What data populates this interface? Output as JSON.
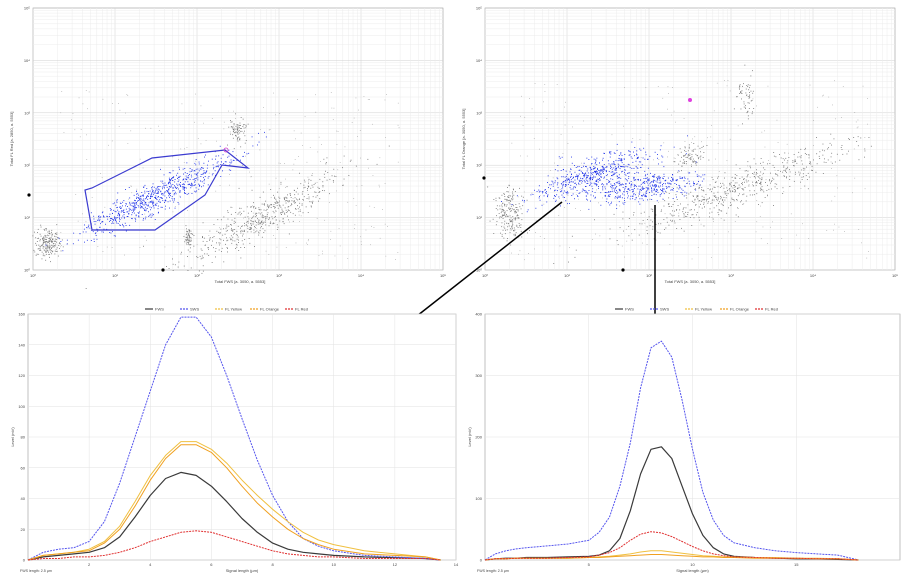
{
  "scatter_plots": [
    {
      "xlabel": "Total FWS [a. 3050, a. 5553]",
      "ylabel": "Total FL Red [a. 2850, a. 5553]",
      "x_tick_labels": [
        "10⁰",
        "10¹",
        "10²",
        "10³",
        "10⁴",
        "10⁵"
      ],
      "y_tick_labels": [
        "10⁰",
        "10¹",
        "10²",
        "10³",
        "10⁴",
        "10⁵"
      ]
    },
    {
      "xlabel": "Total FWS [a. 3050, a. 5553]",
      "ylabel": "Total FL Orange [a. 3050, a. 5553]",
      "x_tick_labels": [
        "10⁰",
        "10¹",
        "10²",
        "10³",
        "10⁴",
        "10⁵"
      ],
      "y_tick_labels": [
        "10⁰",
        "10¹",
        "10²",
        "10³",
        "10⁴",
        "10⁵"
      ]
    }
  ],
  "legend": [
    "FWS",
    "SWS",
    "FL Yellow",
    "FL Orange",
    "FL Red"
  ],
  "colors": {
    "FWS": "#3a3a3a",
    "SWS": "#5555ee",
    "FL Yellow": "#f0c040",
    "FL Orange": "#f0a020",
    "FL Red": "#e03030",
    "cloud": "#7a7a7a",
    "selected": "#1a2ee8",
    "gate": "#3b3bd0"
  },
  "chart_data": [
    {
      "type": "line",
      "xlabel": "Signal length (µm)",
      "ylabel": "Level (mV)",
      "footer": "FWS length: 2.5 µm",
      "xlim": [
        0,
        14
      ],
      "ylim": [
        0,
        160
      ],
      "x_ticks": [
        2,
        4,
        6,
        8,
        10,
        12,
        14
      ],
      "x_tick_labels": [
        "2",
        "4",
        "6",
        "8",
        "10",
        "12",
        "14"
      ],
      "y_ticks": [
        0,
        20,
        40,
        60,
        80,
        100,
        120,
        140,
        160
      ],
      "y_tick_labels": [
        "0",
        "20",
        "40",
        "60",
        "80",
        "100",
        "120",
        "140",
        "160"
      ],
      "x": [
        0,
        0.5,
        1,
        1.5,
        2,
        2.5,
        3,
        3.5,
        4,
        4.5,
        5,
        5.5,
        6,
        6.5,
        7,
        7.5,
        8,
        8.5,
        9,
        9.5,
        10,
        11,
        12,
        13,
        13.5
      ],
      "series": [
        {
          "name": "FWS",
          "values": [
            0,
            2,
            3,
            4,
            5,
            8,
            15,
            28,
            42,
            53,
            57,
            55,
            48,
            38,
            27,
            18,
            11,
            7,
            5,
            4,
            3,
            2,
            1.5,
            1,
            0
          ]
        },
        {
          "name": "SWS",
          "values": [
            0,
            5,
            7,
            8,
            12,
            25,
            50,
            80,
            110,
            140,
            158,
            158,
            145,
            120,
            92,
            65,
            42,
            25,
            14,
            9,
            6,
            3,
            2,
            1,
            0
          ]
        },
        {
          "name": "FL Yellow",
          "values": [
            0,
            3,
            4,
            5,
            7,
            12,
            22,
            38,
            55,
            68,
            77,
            77,
            72,
            63,
            52,
            42,
            33,
            25,
            18,
            13,
            10,
            6,
            4,
            2,
            0
          ]
        },
        {
          "name": "FL Orange",
          "values": [
            0,
            3,
            4,
            5,
            6,
            11,
            20,
            35,
            52,
            66,
            75,
            75,
            70,
            60,
            48,
            37,
            28,
            20,
            14,
            10,
            7,
            4,
            3,
            2,
            0
          ]
        },
        {
          "name": "FL Red",
          "values": [
            0,
            1,
            1,
            2,
            2,
            3,
            5,
            8,
            12,
            15,
            18,
            19,
            18,
            15,
            12,
            9,
            6,
            4,
            3,
            2,
            2,
            1,
            1,
            1,
            0
          ]
        }
      ]
    },
    {
      "type": "line",
      "xlabel": "Signal length (µm)",
      "ylabel": "Level (mV)",
      "footer": "FWS length: 2.5 µm",
      "xlim": [
        0,
        20
      ],
      "ylim": [
        0,
        400
      ],
      "x_ticks": [
        5,
        10,
        15
      ],
      "x_tick_labels": [
        "5",
        "10",
        "15"
      ],
      "y_ticks": [
        0,
        100,
        200,
        300,
        400
      ],
      "y_tick_labels": [
        "0",
        "100",
        "200",
        "300",
        "400"
      ],
      "x": [
        0,
        0.5,
        1,
        1.5,
        2,
        3,
        4,
        5,
        5.5,
        6,
        6.5,
        7,
        7.5,
        8,
        8.5,
        9,
        9.5,
        10,
        10.5,
        11,
        11.5,
        12,
        13,
        14,
        15,
        16,
        17,
        18
      ],
      "series": [
        {
          "name": "FWS",
          "values": [
            0,
            2,
            3,
            3,
            4,
            4,
            5,
            6,
            8,
            15,
            35,
            80,
            140,
            180,
            184,
            165,
            120,
            75,
            40,
            20,
            10,
            6,
            4,
            3,
            2,
            2,
            1,
            0
          ]
        },
        {
          "name": "SWS",
          "values": [
            0,
            10,
            15,
            18,
            20,
            23,
            26,
            32,
            45,
            70,
            120,
            190,
            280,
            345,
            356,
            330,
            260,
            180,
            110,
            65,
            40,
            28,
            20,
            15,
            12,
            10,
            8,
            0
          ]
        },
        {
          "name": "FL Yellow",
          "values": [
            0,
            2,
            2,
            3,
            3,
            3,
            3,
            4,
            5,
            6,
            8,
            10,
            13,
            15,
            15,
            13,
            11,
            9,
            7,
            6,
            5,
            5,
            4,
            4,
            3,
            3,
            2,
            0
          ]
        },
        {
          "name": "FL Orange",
          "values": [
            0,
            2,
            2,
            3,
            3,
            3,
            3,
            4,
            4,
            5,
            6,
            7,
            8,
            9,
            9,
            8,
            7,
            6,
            5,
            5,
            4,
            4,
            3,
            3,
            3,
            2,
            2,
            0
          ]
        },
        {
          "name": "FL Red",
          "values": [
            0,
            2,
            2,
            3,
            3,
            3,
            4,
            5,
            8,
            12,
            20,
            32,
            42,
            46,
            44,
            38,
            30,
            22,
            15,
            10,
            7,
            5,
            4,
            3,
            3,
            2,
            2,
            0
          ]
        }
      ]
    }
  ]
}
